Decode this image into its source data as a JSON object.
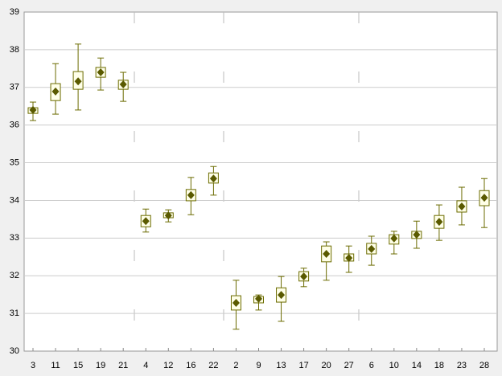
{
  "chart_data": {
    "type": "box",
    "categories": [
      "3",
      "11",
      "15",
      "19",
      "21",
      "4",
      "12",
      "16",
      "22",
      "2",
      "9",
      "13",
      "17",
      "20",
      "27",
      "6",
      "10",
      "14",
      "18",
      "23",
      "28"
    ],
    "means": [
      36.4,
      36.89,
      37.16,
      37.4,
      37.08,
      33.45,
      33.6,
      34.14,
      34.58,
      31.28,
      31.39,
      31.49,
      31.98,
      32.58,
      32.47,
      32.71,
      32.99,
      33.09,
      33.43,
      33.84,
      34.07
    ],
    "box_low": [
      36.31,
      36.65,
      36.95,
      37.27,
      36.95,
      33.3,
      33.54,
      33.99,
      34.46,
      31.09,
      31.28,
      31.3,
      31.86,
      32.37,
      32.39,
      32.58,
      32.84,
      32.99,
      33.26,
      33.69,
      33.86
    ],
    "box_high": [
      36.46,
      37.1,
      37.42,
      37.53,
      37.19,
      33.6,
      33.67,
      34.29,
      34.73,
      31.47,
      31.45,
      31.68,
      32.11,
      32.79,
      32.58,
      32.86,
      33.09,
      33.18,
      33.6,
      33.99,
      34.26
    ],
    "whisker_low": [
      36.12,
      36.29,
      36.4,
      36.93,
      36.63,
      33.16,
      33.43,
      33.62,
      34.14,
      30.58,
      31.09,
      30.79,
      31.71,
      31.88,
      32.09,
      32.28,
      32.58,
      32.73,
      32.94,
      33.35,
      33.28
    ],
    "whisker_high": [
      36.61,
      37.63,
      38.15,
      37.78,
      37.4,
      33.77,
      33.75,
      34.61,
      34.9,
      31.88,
      31.49,
      31.98,
      32.2,
      32.9,
      32.79,
      33.05,
      33.18,
      33.45,
      33.88,
      34.35,
      34.58
    ],
    "color": "#6b6b00",
    "box_fill": "#ffffe8",
    "ylim": [
      30,
      39
    ],
    "yticks": [
      30,
      31,
      32,
      33,
      34,
      35,
      36,
      37,
      38,
      39
    ],
    "grid": true
  }
}
